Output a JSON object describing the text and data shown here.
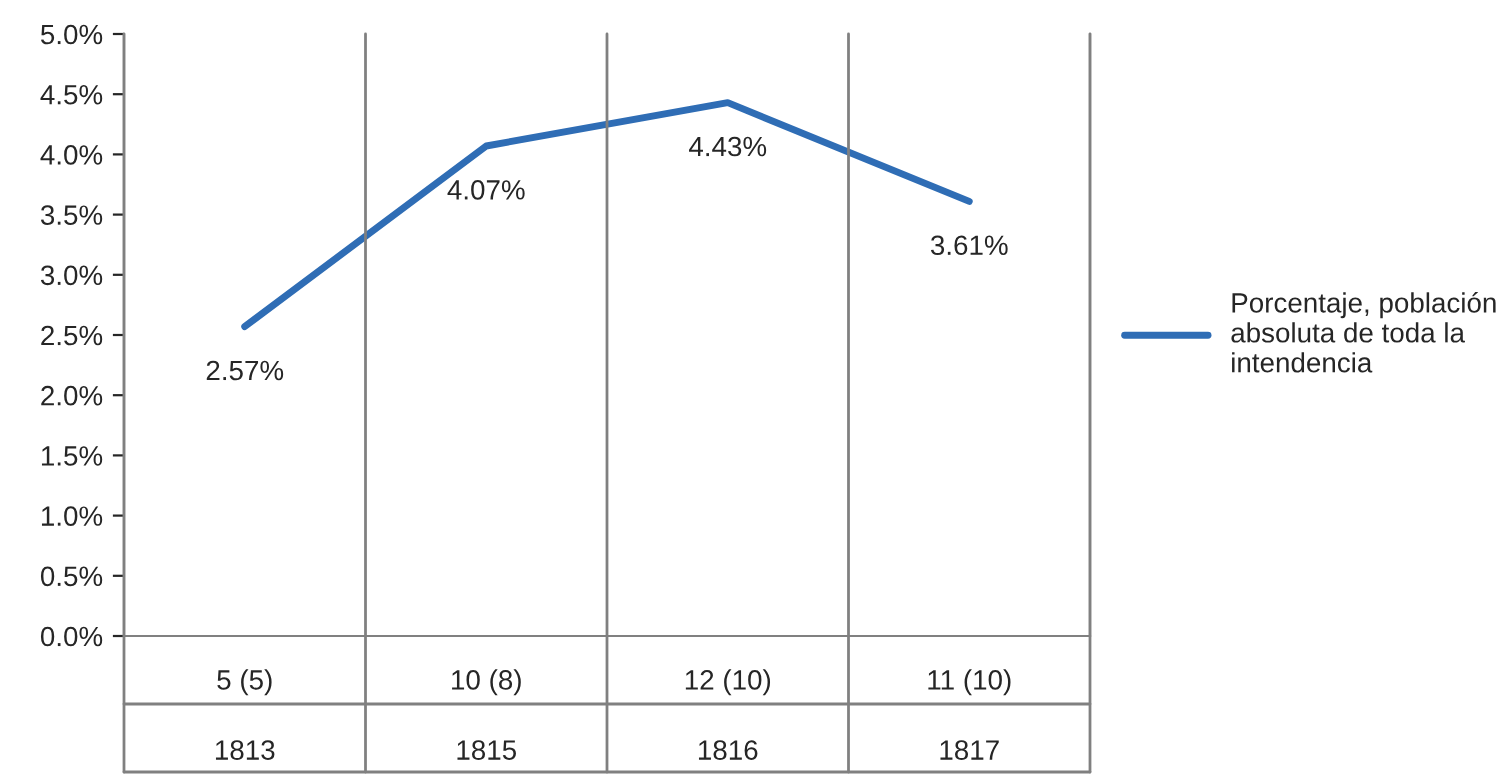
{
  "chart_data": {
    "type": "line",
    "categories": [
      "5 (5)\n1813",
      "10 (8)\n1815",
      "12 (10)\n1816",
      "11 (10)\n1817"
    ],
    "series": [
      {
        "name": "Porcentaje, población\nabsoluta de toda la\nintendencia",
        "color": "#2f6db5",
        "values": [
          2.57,
          4.07,
          4.43,
          3.61
        ],
        "value_labels": [
          "2.57%",
          "4.07%",
          "4.43%",
          "3.61%"
        ]
      }
    ],
    "ylim": [
      0,
      5
    ],
    "yticks": [
      {
        "value": 0,
        "label": "0.0%"
      },
      {
        "value": 0.5,
        "label": "0.5%"
      },
      {
        "value": 1,
        "label": "1.0%"
      },
      {
        "value": 1.5,
        "label": "1.5%"
      },
      {
        "value": 2,
        "label": "2.0%"
      },
      {
        "value": 2.5,
        "label": "2.5%"
      },
      {
        "value": 3,
        "label": "3.0%"
      },
      {
        "value": 3.5,
        "label": "3.5%"
      },
      {
        "value": 4,
        "label": "4.0%"
      },
      {
        "value": 4.5,
        "label": "4.5%"
      },
      {
        "value": 5,
        "label": "5.0%"
      }
    ],
    "legend": "right",
    "marker": "none",
    "line_style": "solid"
  }
}
